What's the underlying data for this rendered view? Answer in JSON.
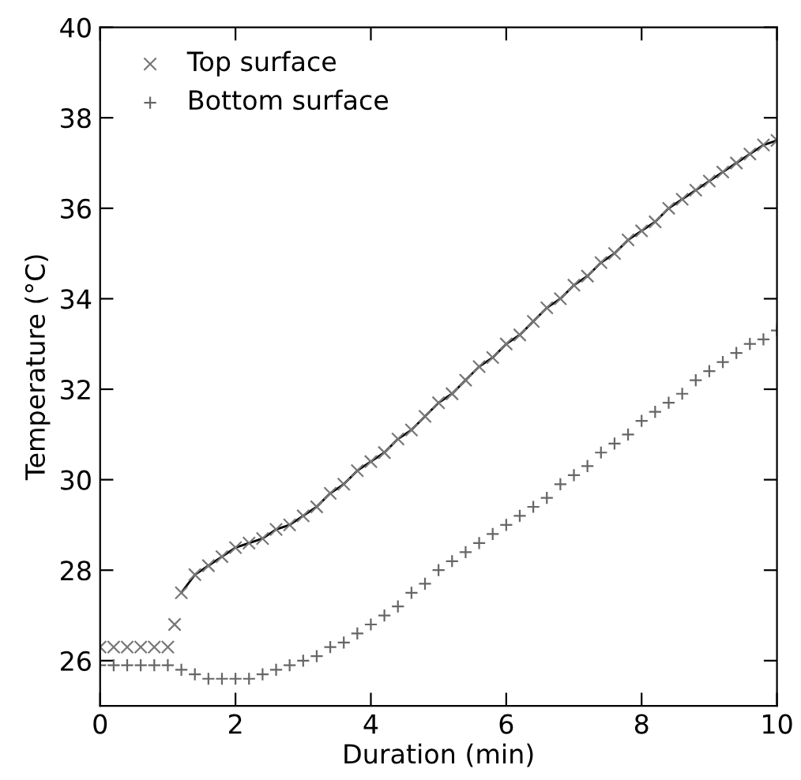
{
  "chart_data": {
    "type": "scatter",
    "xlabel": "Duration (min)",
    "ylabel": "Temperature (°C)",
    "xlim": [
      0,
      10
    ],
    "ylim": [
      25,
      40
    ],
    "xticks": [
      0,
      2,
      4,
      6,
      8,
      10
    ],
    "yticks": [
      26,
      28,
      30,
      32,
      34,
      36,
      38,
      40
    ],
    "grid": false,
    "legend": "top left",
    "series": [
      {
        "name": "Top surface",
        "color": "#777777",
        "marker": "cross",
        "x": [
          0,
          0.2,
          0.4,
          0.6,
          0.8,
          1.0,
          1.1,
          1.2,
          1.4,
          1.6,
          1.8,
          2.0,
          2.2,
          2.4,
          2.6,
          2.8,
          3.0,
          3.2,
          3.4,
          3.6,
          3.8,
          4.0,
          4.2,
          4.4,
          4.6,
          4.8,
          5.0,
          5.2,
          5.4,
          5.6,
          5.8,
          6.0,
          6.2,
          6.4,
          6.6,
          6.8,
          7.0,
          7.2,
          7.4,
          7.6,
          7.8,
          8.0,
          8.2,
          8.4,
          8.6,
          8.8,
          9.0,
          9.2,
          9.4,
          9.6,
          9.8,
          10.0
        ],
        "values": [
          26.3,
          26.3,
          26.3,
          26.3,
          26.3,
          26.3,
          26.8,
          27.5,
          27.9,
          28.1,
          28.3,
          28.5,
          28.6,
          28.7,
          28.9,
          29.0,
          29.2,
          29.4,
          29.7,
          29.9,
          30.2,
          30.4,
          30.6,
          30.9,
          31.1,
          31.4,
          31.7,
          31.9,
          32.2,
          32.5,
          32.7,
          33.0,
          33.2,
          33.5,
          33.8,
          34.0,
          34.3,
          34.5,
          34.8,
          35.0,
          35.3,
          35.5,
          35.7,
          36.0,
          36.2,
          36.4,
          36.6,
          36.8,
          37.0,
          37.2,
          37.4,
          37.5
        ]
      },
      {
        "name": "Bottom surface",
        "color": "#666666",
        "marker": "plus",
        "x": [
          0,
          0.2,
          0.4,
          0.6,
          0.8,
          1.0,
          1.2,
          1.4,
          1.6,
          1.8,
          2.0,
          2.2,
          2.4,
          2.6,
          2.8,
          3.0,
          3.2,
          3.4,
          3.6,
          3.8,
          4.0,
          4.2,
          4.4,
          4.6,
          4.8,
          5.0,
          5.2,
          5.4,
          5.6,
          5.8,
          6.0,
          6.2,
          6.4,
          6.6,
          6.8,
          7.0,
          7.2,
          7.4,
          7.6,
          7.8,
          8.0,
          8.2,
          8.4,
          8.6,
          8.8,
          9.0,
          9.2,
          9.4,
          9.6,
          9.8,
          10.0
        ],
        "values": [
          25.9,
          25.9,
          25.9,
          25.9,
          25.9,
          25.9,
          25.8,
          25.7,
          25.6,
          25.6,
          25.6,
          25.6,
          25.7,
          25.8,
          25.9,
          26.0,
          26.1,
          26.3,
          26.4,
          26.6,
          26.8,
          27.0,
          27.2,
          27.5,
          27.7,
          28.0,
          28.2,
          28.4,
          28.6,
          28.8,
          29.0,
          29.2,
          29.4,
          29.6,
          29.9,
          30.1,
          30.3,
          30.6,
          30.8,
          31.0,
          31.3,
          31.5,
          31.7,
          31.9,
          32.2,
          32.4,
          32.6,
          32.8,
          33.0,
          33.1,
          33.3
        ]
      },
      {
        "type": "line",
        "color": "#000000",
        "marker": "none",
        "x": [
          1.2,
          1.4,
          1.6,
          1.8,
          2.0,
          2.2,
          2.4,
          2.6,
          2.8,
          3.0,
          3.2,
          3.4,
          3.6,
          3.8,
          4.0,
          4.2,
          4.4,
          4.6,
          4.8,
          5.0,
          5.2,
          5.4,
          5.6,
          5.8,
          6.0,
          6.2,
          6.4,
          6.6,
          6.8,
          7.0,
          7.2,
          7.4,
          7.6,
          7.8,
          8.0,
          8.2,
          8.4,
          8.6,
          8.8,
          9.0,
          9.2,
          9.4,
          9.6,
          9.8,
          10.0
        ],
        "values": [
          27.5,
          27.9,
          28.1,
          28.3,
          28.5,
          28.6,
          28.7,
          28.9,
          29.0,
          29.2,
          29.4,
          29.7,
          29.9,
          30.2,
          30.4,
          30.6,
          30.9,
          31.1,
          31.4,
          31.7,
          31.9,
          32.2,
          32.5,
          32.7,
          33.0,
          33.2,
          33.5,
          33.8,
          34.0,
          34.3,
          34.5,
          34.8,
          35.0,
          35.3,
          35.5,
          35.7,
          36.0,
          36.2,
          36.4,
          36.6,
          36.8,
          37.0,
          37.2,
          37.4,
          37.5
        ]
      }
    ]
  }
}
